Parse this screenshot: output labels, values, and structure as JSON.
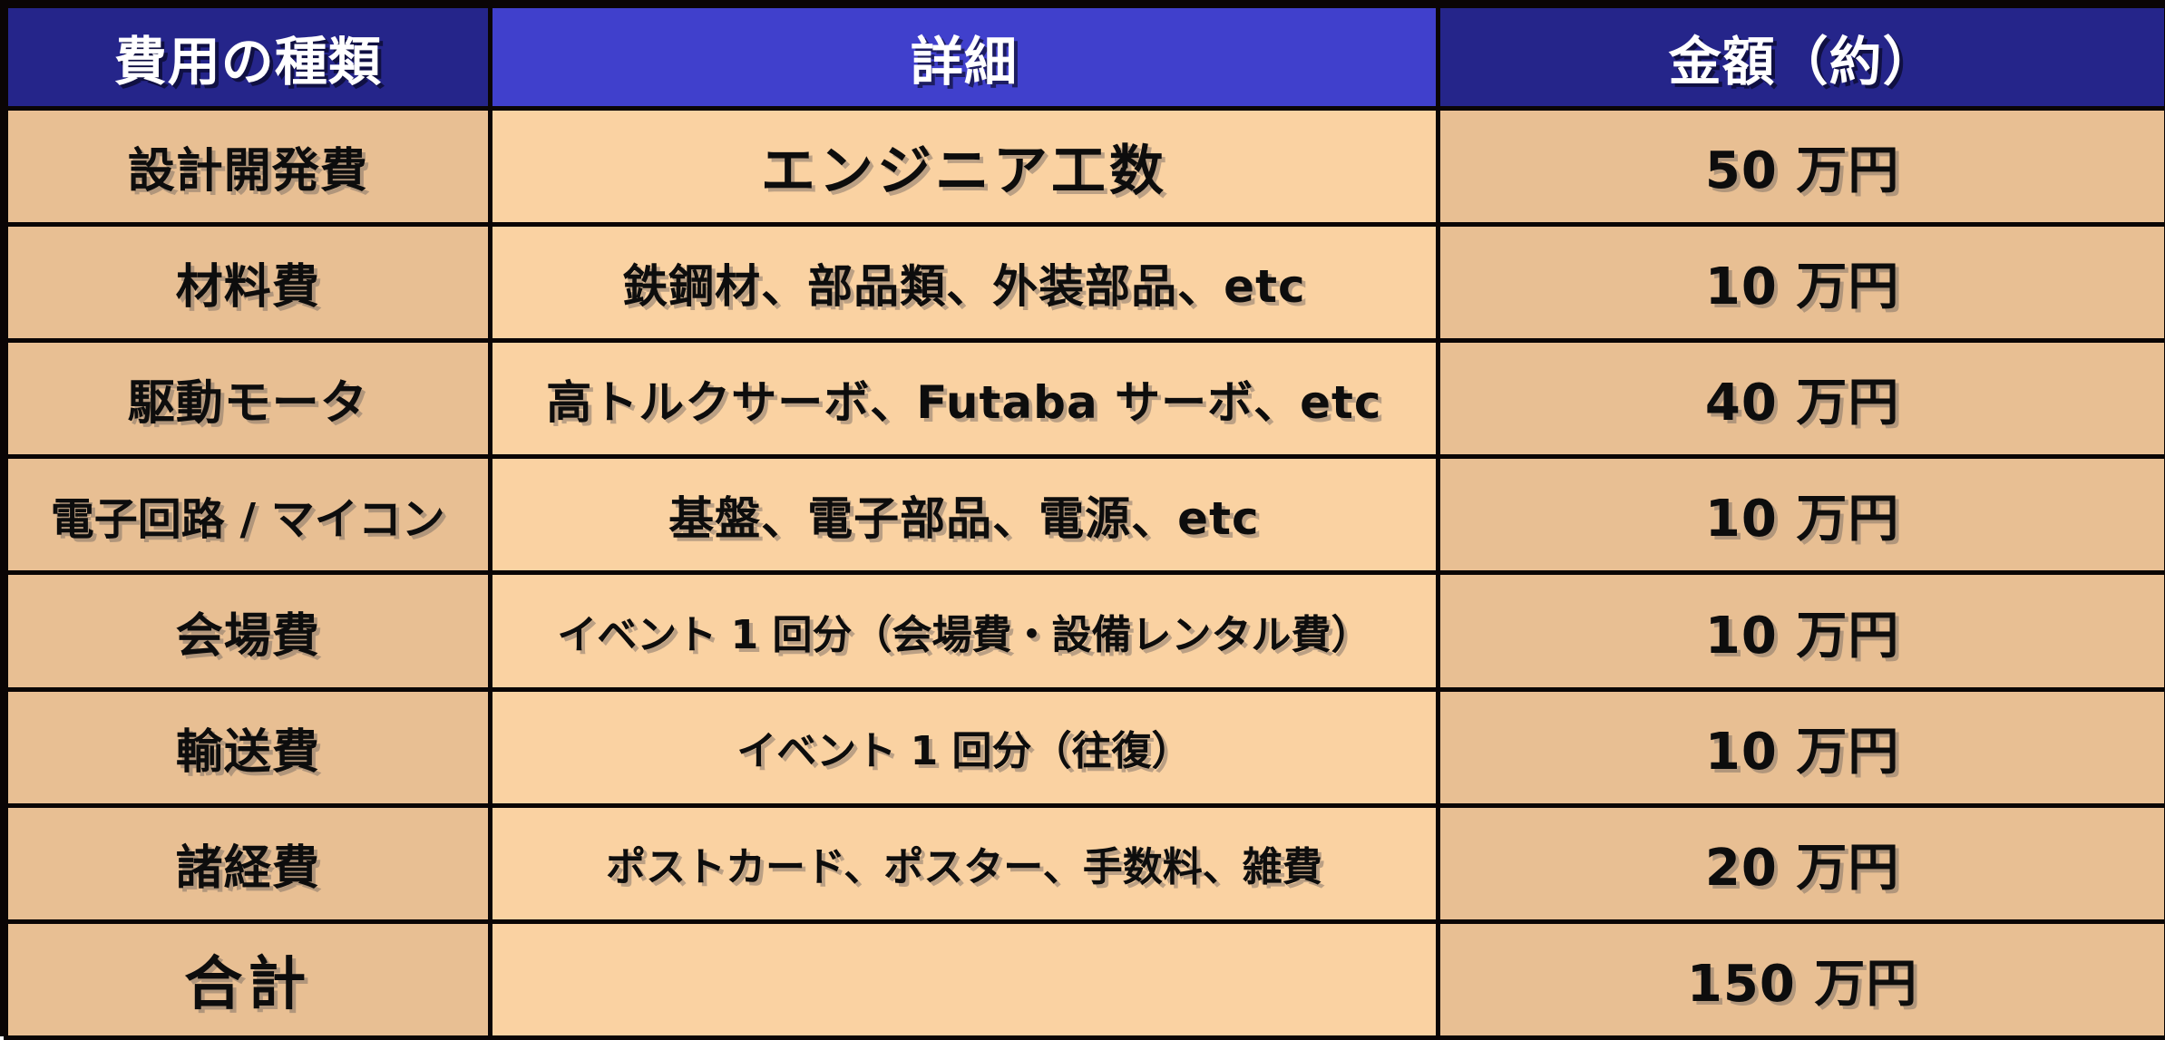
{
  "theme": {
    "header_navy": "#25258a",
    "header_indigo": "#4040cc",
    "body_tan": "#e8bf93",
    "body_peach": "#fad2a2",
    "border_black": "#0a0505",
    "header_text": "#ffffff",
    "body_text": "#0d0d0d"
  },
  "table": {
    "columns": {
      "category": "費用の種類",
      "detail": "詳細",
      "amount": "金額（約）"
    },
    "rows": [
      {
        "category": "設計開発費",
        "detail": "エンジニア工数",
        "amount": "50 万円"
      },
      {
        "category": "材料費",
        "detail": "鉄鋼材、部品類、外装部品、etc",
        "amount": "10 万円"
      },
      {
        "category": "駆動モータ",
        "detail": "高トルクサーボ、Futaba サーボ、etc",
        "amount": "40 万円"
      },
      {
        "category": "電子回路 / マイコン",
        "detail": "基盤、電子部品、電源、etc",
        "amount": "10 万円"
      },
      {
        "category": "会場費",
        "detail": "イベント 1 回分（会場費・設備レンタル費）",
        "amount": "10 万円"
      },
      {
        "category": "輸送費",
        "detail": "イベント 1 回分（往復）",
        "amount": "10 万円"
      },
      {
        "category": "諸経費",
        "detail": "ポストカード、ポスター、手数料、雑費",
        "amount": "20 万円"
      },
      {
        "category": "合計",
        "detail": "",
        "amount": "150 万円"
      }
    ]
  }
}
